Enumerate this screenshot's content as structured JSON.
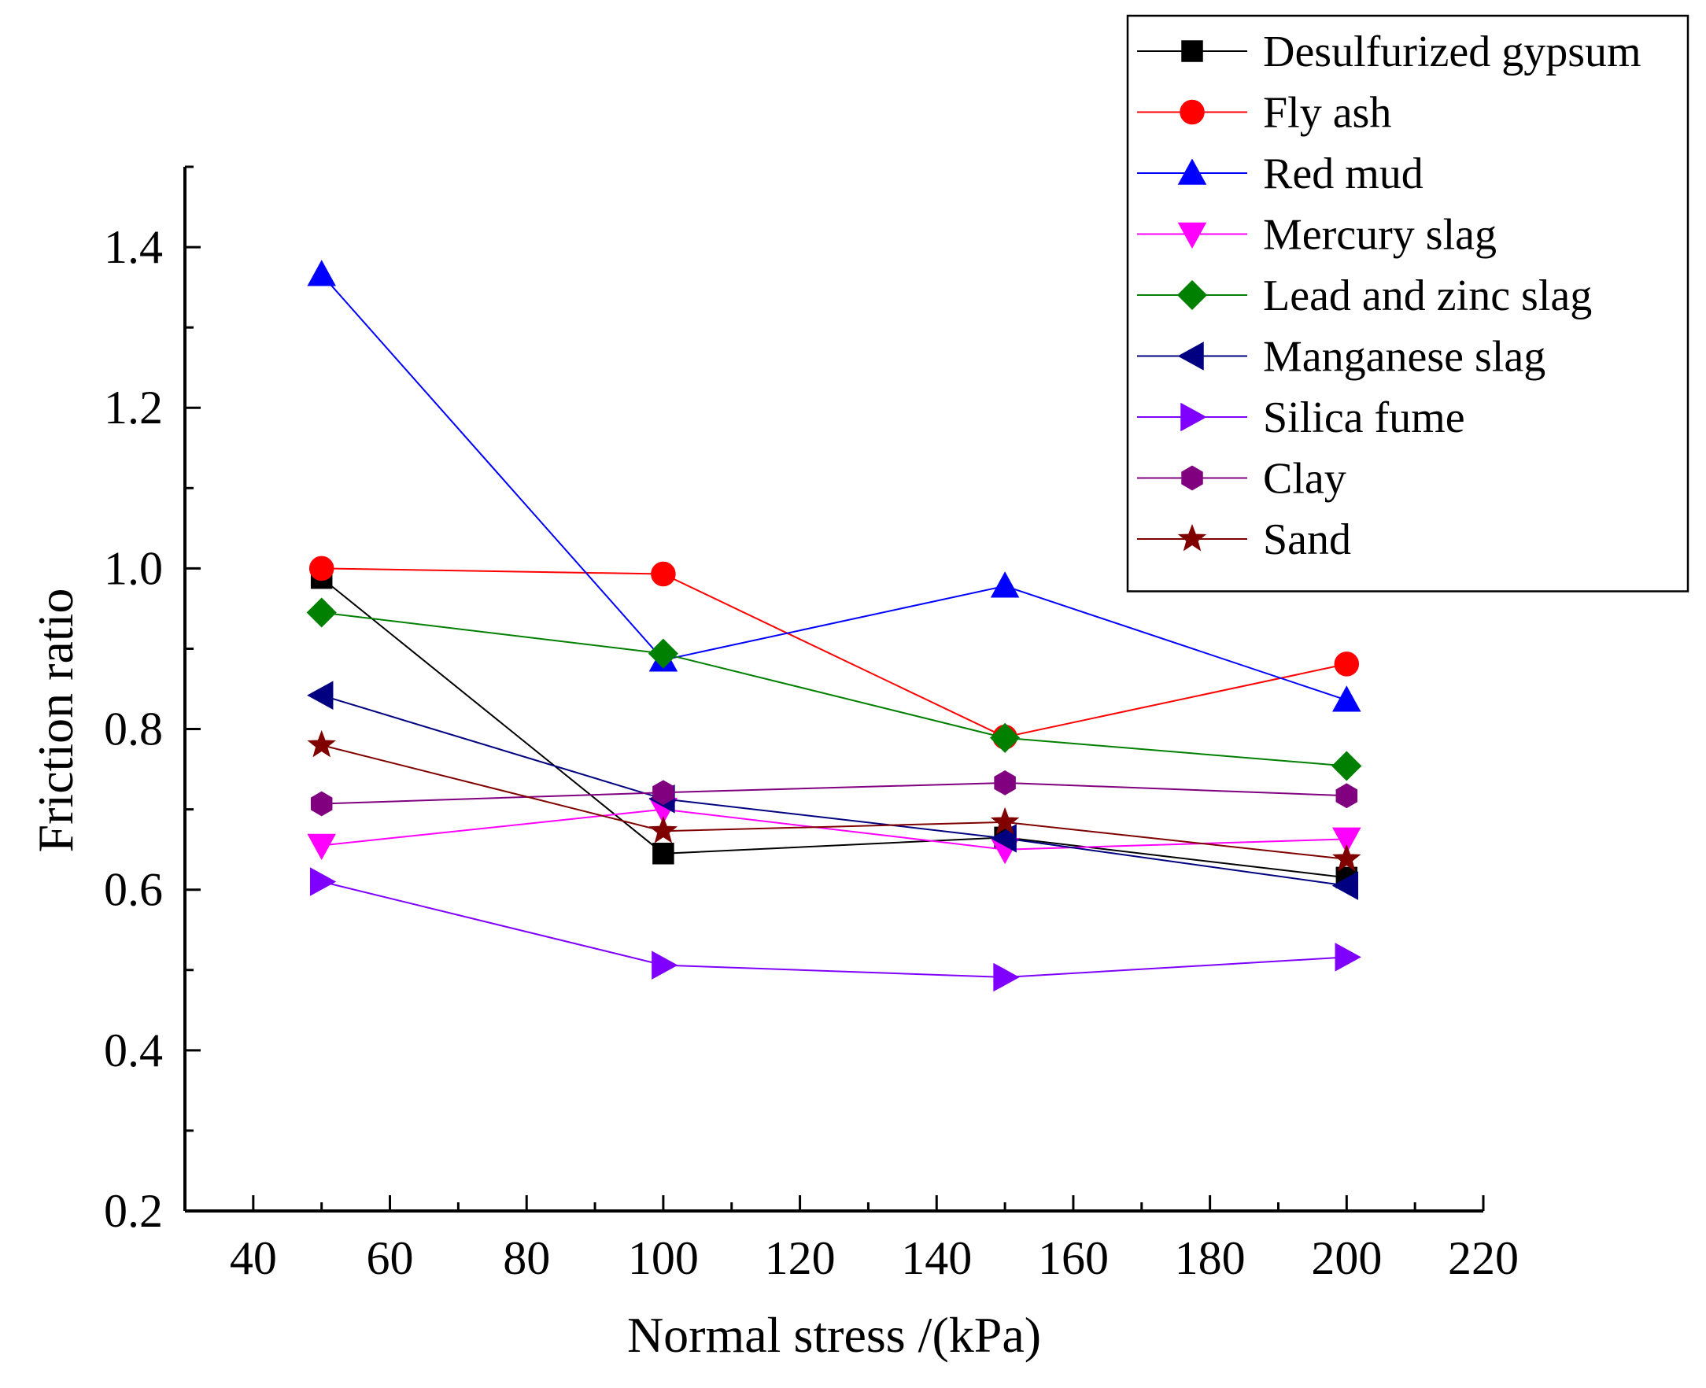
{
  "chart_data": {
    "type": "line",
    "xlabel": "Normal stress /(kPa)",
    "ylabel": "Friction ratio",
    "xlim": [
      30,
      220
    ],
    "ylim": [
      0.2,
      1.5
    ],
    "x_ticks": [
      40,
      60,
      80,
      100,
      120,
      140,
      160,
      180,
      200,
      220
    ],
    "y_ticks": [
      0.2,
      0.4,
      0.6,
      0.8,
      1.0,
      1.2,
      1.4
    ],
    "x_tick_labels": [
      "40",
      "60",
      "80",
      "100",
      "120",
      "140",
      "160",
      "180",
      "200",
      "220"
    ],
    "y_tick_labels": [
      "0.2",
      "0.4",
      "0.6",
      "0.8",
      "1.0",
      "1.2",
      "1.4"
    ],
    "x": [
      50,
      100,
      150,
      200
    ],
    "legend_position": "top-right",
    "grid": false,
    "series": [
      {
        "name": "Desulfurized gypsum",
        "marker": "square",
        "color": "#000000",
        "values": [
          0.988,
          0.645,
          0.665,
          0.615
        ]
      },
      {
        "name": "Fly ash",
        "marker": "circle",
        "color": "#ff0000",
        "values": [
          1.0,
          0.993,
          0.79,
          0.881
        ]
      },
      {
        "name": "Red mud",
        "marker": "triangle-up",
        "color": "#0000ff",
        "values": [
          1.366,
          0.886,
          0.978,
          0.836
        ]
      },
      {
        "name": "Mercury slag",
        "marker": "triangle-down",
        "color": "#ff00ff",
        "values": [
          0.655,
          0.7,
          0.65,
          0.663
        ]
      },
      {
        "name": "Lead and zinc slag",
        "marker": "diamond",
        "color": "#008000",
        "values": [
          0.945,
          0.894,
          0.789,
          0.754
        ]
      },
      {
        "name": "Manganese slag",
        "marker": "triangle-left",
        "color": "#000080",
        "values": [
          0.842,
          0.713,
          0.664,
          0.605
        ]
      },
      {
        "name": "Silica fume",
        "marker": "triangle-right",
        "color": "#8000ff",
        "values": [
          0.61,
          0.506,
          0.491,
          0.516
        ]
      },
      {
        "name": "Clay",
        "marker": "hexagon",
        "color": "#800080",
        "values": [
          0.707,
          0.721,
          0.733,
          0.717
        ]
      },
      {
        "name": "Sand",
        "marker": "star",
        "color": "#800000",
        "values": [
          0.78,
          0.673,
          0.684,
          0.638
        ]
      }
    ]
  }
}
